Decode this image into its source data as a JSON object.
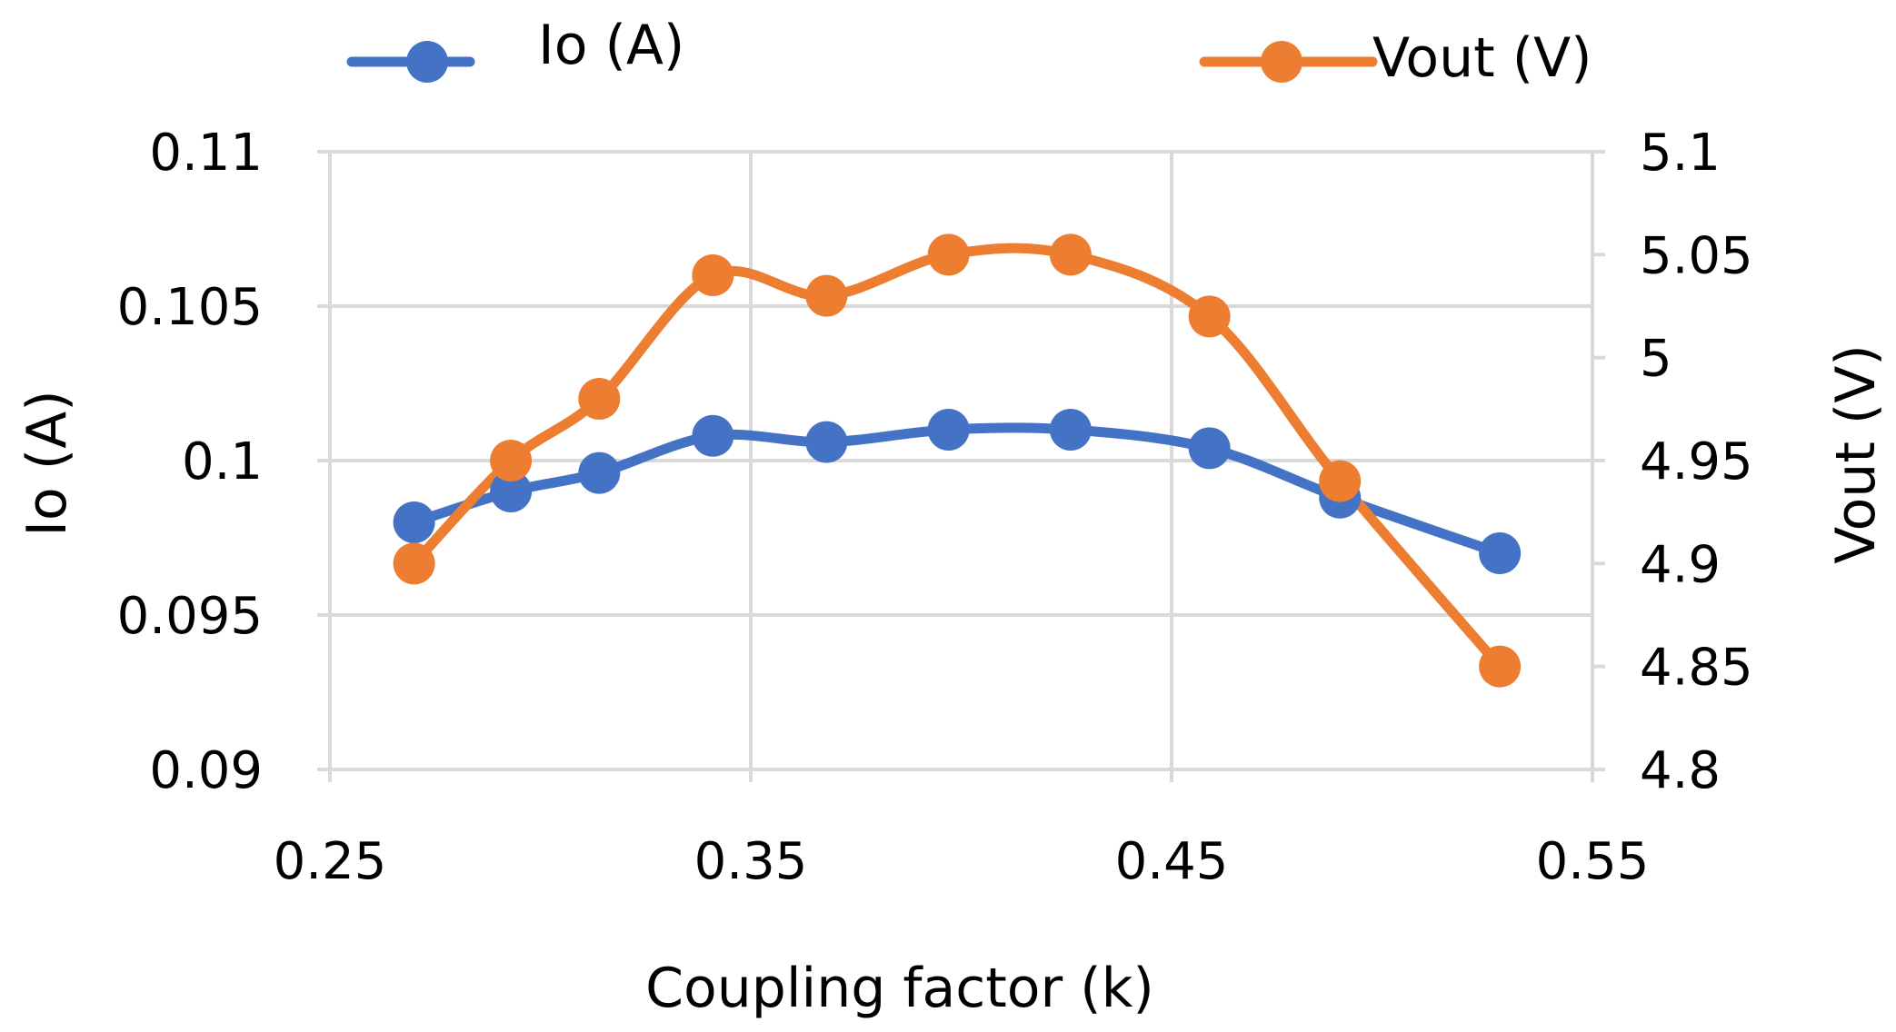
{
  "chart_data": {
    "type": "line",
    "title": "",
    "xlabel": "Coupling factor (k)",
    "ylabel": "Io (A)",
    "y2label": "Vout (V)",
    "xlim": [
      0.25,
      0.55
    ],
    "ylim": [
      0.09,
      0.11
    ],
    "y2lim": [
      4.8,
      5.1
    ],
    "x_ticks": [
      "0.25",
      "0.35",
      "0.45",
      "0.55"
    ],
    "y_ticks": [
      "0.09",
      "0.095",
      "0.1",
      "0.105",
      "0.11"
    ],
    "y2_ticks": [
      "4.8",
      "4.85",
      "4.9",
      "4.95",
      "5",
      "5.05",
      "5.1"
    ],
    "grid": true,
    "legend_position": "top",
    "smooth": true,
    "series": [
      {
        "name": "Io (A)",
        "axis": "left",
        "color": "#4472c4",
        "x": [
          0.27,
          0.293,
          0.314,
          0.341,
          0.368,
          0.397,
          0.426,
          0.459,
          0.49,
          0.528
        ],
        "values": [
          0.098,
          0.099,
          0.0996,
          0.1008,
          0.1006,
          0.101,
          0.101,
          0.1004,
          0.0988,
          0.097
        ]
      },
      {
        "name": "Vout (V)",
        "axis": "right",
        "color": "#ed7d31",
        "x": [
          0.27,
          0.293,
          0.314,
          0.341,
          0.368,
          0.397,
          0.426,
          0.459,
          0.49,
          0.528
        ],
        "values": [
          4.9,
          4.95,
          4.98,
          5.04,
          5.03,
          5.05,
          5.05,
          5.02,
          4.94,
          4.85
        ]
      }
    ]
  }
}
